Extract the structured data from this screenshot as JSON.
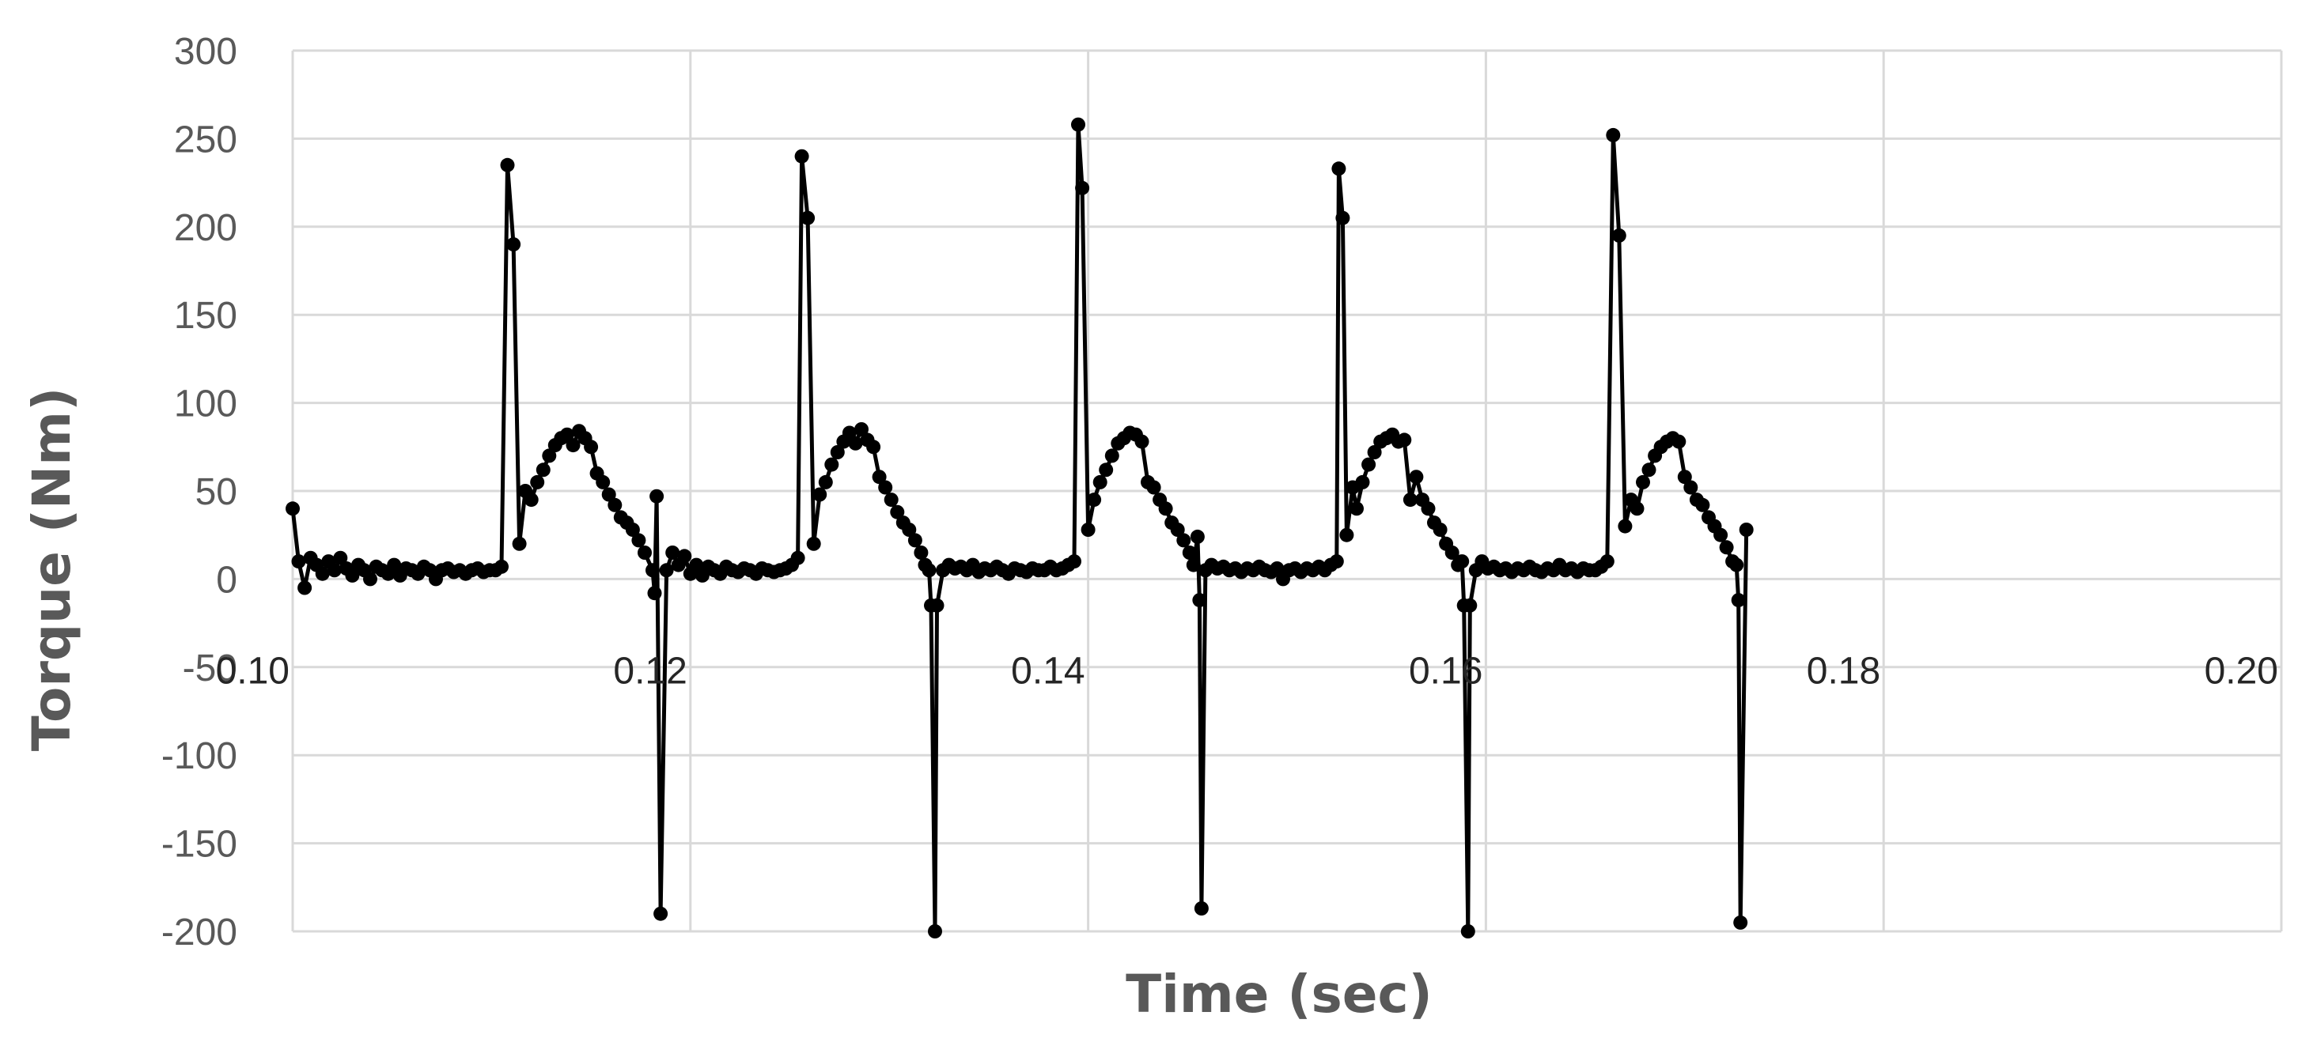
{
  "chart_data": {
    "type": "line",
    "title": "",
    "xlabel": "Time (sec)",
    "ylabel": "Torque (Nm)",
    "xlim": [
      0.1,
      0.2
    ],
    "ylim": [
      -200,
      300
    ],
    "x_ticks": [
      "0.10",
      "0.12",
      "0.14",
      "0.16",
      "0.18",
      "0.20"
    ],
    "y_ticks": [
      "300",
      "250",
      "200",
      "150",
      "100",
      "50",
      "0",
      "-50",
      "-100",
      "-150",
      "-200"
    ],
    "grid": true,
    "legend": "none",
    "marker": "circle",
    "series_color": "#000000",
    "series": [
      {
        "points": [
          [
            0.1,
            40
          ],
          [
            0.1003,
            10
          ],
          [
            0.1006,
            -5
          ],
          [
            0.1009,
            12
          ],
          [
            0.1012,
            8
          ],
          [
            0.1015,
            3
          ],
          [
            0.1018,
            10
          ],
          [
            0.1021,
            5
          ],
          [
            0.1024,
            12
          ],
          [
            0.1027,
            6
          ],
          [
            0.103,
            2
          ],
          [
            0.1033,
            8
          ],
          [
            0.1036,
            5
          ],
          [
            0.1039,
            0
          ],
          [
            0.1042,
            7
          ],
          [
            0.1045,
            5
          ],
          [
            0.1048,
            3
          ],
          [
            0.1051,
            8
          ],
          [
            0.1054,
            2
          ],
          [
            0.1057,
            6
          ],
          [
            0.106,
            5
          ],
          [
            0.1063,
            3
          ],
          [
            0.1066,
            7
          ],
          [
            0.1069,
            5
          ],
          [
            0.1072,
            0
          ],
          [
            0.1075,
            5
          ],
          [
            0.1078,
            6
          ],
          [
            0.1081,
            4
          ],
          [
            0.1084,
            5
          ],
          [
            0.1087,
            3
          ],
          [
            0.109,
            5
          ],
          [
            0.1093,
            6
          ],
          [
            0.1096,
            4
          ],
          [
            0.1099,
            5
          ],
          [
            0.1102,
            5
          ],
          [
            0.1105,
            7
          ],
          [
            0.1108,
            235
          ],
          [
            0.1111,
            190
          ],
          [
            0.1114,
            20
          ],
          [
            0.1117,
            50
          ],
          [
            0.112,
            45
          ],
          [
            0.1123,
            55
          ],
          [
            0.1126,
            62
          ],
          [
            0.1129,
            70
          ],
          [
            0.1132,
            76
          ],
          [
            0.1135,
            80
          ],
          [
            0.1138,
            82
          ],
          [
            0.1141,
            76
          ],
          [
            0.1144,
            84
          ],
          [
            0.1147,
            80
          ],
          [
            0.115,
            75
          ],
          [
            0.1153,
            60
          ],
          [
            0.1156,
            55
          ],
          [
            0.1159,
            48
          ],
          [
            0.1162,
            42
          ],
          [
            0.1165,
            35
          ],
          [
            0.1168,
            32
          ],
          [
            0.1171,
            28
          ],
          [
            0.1174,
            22
          ],
          [
            0.1177,
            15
          ],
          [
            0.1181,
            5
          ],
          [
            0.1182,
            -8
          ],
          [
            0.1183,
            47
          ],
          [
            0.1185,
            -190
          ],
          [
            0.1188,
            5
          ],
          [
            0.1191,
            15
          ],
          [
            0.1194,
            8
          ],
          [
            0.1197,
            13
          ],
          [
            0.12,
            3
          ],
          [
            0.1203,
            8
          ],
          [
            0.1206,
            2
          ],
          [
            0.1209,
            7
          ],
          [
            0.1212,
            5
          ],
          [
            0.1215,
            3
          ],
          [
            0.1218,
            7
          ],
          [
            0.1221,
            5
          ],
          [
            0.1224,
            4
          ],
          [
            0.1227,
            6
          ],
          [
            0.123,
            5
          ],
          [
            0.1233,
            3
          ],
          [
            0.1236,
            6
          ],
          [
            0.1239,
            5
          ],
          [
            0.1242,
            4
          ],
          [
            0.1245,
            5
          ],
          [
            0.1248,
            6
          ],
          [
            0.1251,
            8
          ],
          [
            0.1254,
            12
          ],
          [
            0.1256,
            240
          ],
          [
            0.1259,
            205
          ],
          [
            0.1262,
            20
          ],
          [
            0.1265,
            48
          ],
          [
            0.1268,
            55
          ],
          [
            0.1271,
            65
          ],
          [
            0.1274,
            72
          ],
          [
            0.1277,
            78
          ],
          [
            0.128,
            83
          ],
          [
            0.1283,
            77
          ],
          [
            0.1286,
            85
          ],
          [
            0.1289,
            79
          ],
          [
            0.1292,
            75
          ],
          [
            0.1295,
            58
          ],
          [
            0.1298,
            52
          ],
          [
            0.1301,
            45
          ],
          [
            0.1304,
            38
          ],
          [
            0.1307,
            32
          ],
          [
            0.131,
            28
          ],
          [
            0.1313,
            22
          ],
          [
            0.1316,
            15
          ],
          [
            0.1318,
            8
          ],
          [
            0.132,
            5
          ],
          [
            0.1321,
            -15
          ],
          [
            0.1323,
            -200
          ],
          [
            0.1324,
            -15
          ],
          [
            0.1327,
            5
          ],
          [
            0.133,
            8
          ],
          [
            0.1333,
            6
          ],
          [
            0.1336,
            7
          ],
          [
            0.1339,
            5
          ],
          [
            0.1342,
            8
          ],
          [
            0.1345,
            4
          ],
          [
            0.1348,
            6
          ],
          [
            0.1351,
            5
          ],
          [
            0.1354,
            7
          ],
          [
            0.1357,
            5
          ],
          [
            0.136,
            3
          ],
          [
            0.1363,
            6
          ],
          [
            0.1366,
            5
          ],
          [
            0.1369,
            4
          ],
          [
            0.1372,
            6
          ],
          [
            0.1375,
            5
          ],
          [
            0.1378,
            5
          ],
          [
            0.1381,
            7
          ],
          [
            0.1384,
            5
          ],
          [
            0.1387,
            6
          ],
          [
            0.139,
            8
          ],
          [
            0.1393,
            10
          ],
          [
            0.1395,
            258
          ],
          [
            0.1397,
            222
          ],
          [
            0.14,
            28
          ],
          [
            0.1403,
            45
          ],
          [
            0.1406,
            55
          ],
          [
            0.1409,
            62
          ],
          [
            0.1412,
            70
          ],
          [
            0.1415,
            77
          ],
          [
            0.1418,
            80
          ],
          [
            0.1421,
            83
          ],
          [
            0.1424,
            82
          ],
          [
            0.1427,
            78
          ],
          [
            0.143,
            55
          ],
          [
            0.1433,
            52
          ],
          [
            0.1436,
            45
          ],
          [
            0.1439,
            40
          ],
          [
            0.1442,
            32
          ],
          [
            0.1445,
            28
          ],
          [
            0.1448,
            22
          ],
          [
            0.1451,
            15
          ],
          [
            0.1453,
            8
          ],
          [
            0.1455,
            24
          ],
          [
            0.1456,
            -12
          ],
          [
            0.1457,
            -187
          ],
          [
            0.1459,
            5
          ],
          [
            0.1462,
            8
          ],
          [
            0.1465,
            6
          ],
          [
            0.1468,
            7
          ],
          [
            0.1471,
            5
          ],
          [
            0.1474,
            6
          ],
          [
            0.1477,
            4
          ],
          [
            0.148,
            6
          ],
          [
            0.1483,
            5
          ],
          [
            0.1486,
            7
          ],
          [
            0.1489,
            5
          ],
          [
            0.1492,
            4
          ],
          [
            0.1495,
            6
          ],
          [
            0.1498,
            0
          ],
          [
            0.1501,
            5
          ],
          [
            0.1504,
            6
          ],
          [
            0.1507,
            4
          ],
          [
            0.151,
            6
          ],
          [
            0.1513,
            5
          ],
          [
            0.1516,
            7
          ],
          [
            0.1519,
            5
          ],
          [
            0.1522,
            8
          ],
          [
            0.1525,
            10
          ],
          [
            0.1526,
            233
          ],
          [
            0.1528,
            205
          ],
          [
            0.153,
            25
          ],
          [
            0.1533,
            52
          ],
          [
            0.1535,
            40
          ],
          [
            0.1538,
            55
          ],
          [
            0.1541,
            65
          ],
          [
            0.1544,
            72
          ],
          [
            0.1547,
            78
          ],
          [
            0.155,
            80
          ],
          [
            0.1553,
            82
          ],
          [
            0.1556,
            78
          ],
          [
            0.1559,
            79
          ],
          [
            0.1562,
            45
          ],
          [
            0.1565,
            58
          ],
          [
            0.1568,
            45
          ],
          [
            0.1571,
            40
          ],
          [
            0.1574,
            32
          ],
          [
            0.1577,
            28
          ],
          [
            0.158,
            20
          ],
          [
            0.1583,
            15
          ],
          [
            0.1586,
            8
          ],
          [
            0.1588,
            10
          ],
          [
            0.1589,
            -15
          ],
          [
            0.1591,
            -200
          ],
          [
            0.1592,
            -15
          ],
          [
            0.1595,
            5
          ],
          [
            0.1598,
            10
          ],
          [
            0.1601,
            6
          ],
          [
            0.1604,
            7
          ],
          [
            0.1607,
            5
          ],
          [
            0.161,
            6
          ],
          [
            0.1613,
            4
          ],
          [
            0.1616,
            6
          ],
          [
            0.1619,
            5
          ],
          [
            0.1622,
            7
          ],
          [
            0.1625,
            5
          ],
          [
            0.1628,
            4
          ],
          [
            0.1631,
            6
          ],
          [
            0.1634,
            5
          ],
          [
            0.1637,
            8
          ],
          [
            0.164,
            5
          ],
          [
            0.1643,
            6
          ],
          [
            0.1646,
            4
          ],
          [
            0.1649,
            6
          ],
          [
            0.1652,
            5
          ],
          [
            0.1655,
            5
          ],
          [
            0.1658,
            7
          ],
          [
            0.1661,
            10
          ],
          [
            0.1664,
            252
          ],
          [
            0.1667,
            195
          ],
          [
            0.167,
            30
          ],
          [
            0.1673,
            45
          ],
          [
            0.1676,
            40
          ],
          [
            0.1679,
            55
          ],
          [
            0.1682,
            62
          ],
          [
            0.1685,
            70
          ],
          [
            0.1688,
            75
          ],
          [
            0.1691,
            78
          ],
          [
            0.1694,
            80
          ],
          [
            0.1697,
            78
          ],
          [
            0.17,
            58
          ],
          [
            0.1703,
            52
          ],
          [
            0.1706,
            45
          ],
          [
            0.1709,
            42
          ],
          [
            0.1712,
            35
          ],
          [
            0.1715,
            30
          ],
          [
            0.1718,
            25
          ],
          [
            0.1721,
            18
          ],
          [
            0.1724,
            10
          ],
          [
            0.1726,
            8
          ],
          [
            0.1727,
            -12
          ],
          [
            0.1728,
            -195
          ],
          [
            0.1731,
            28
          ]
        ]
      }
    ]
  }
}
